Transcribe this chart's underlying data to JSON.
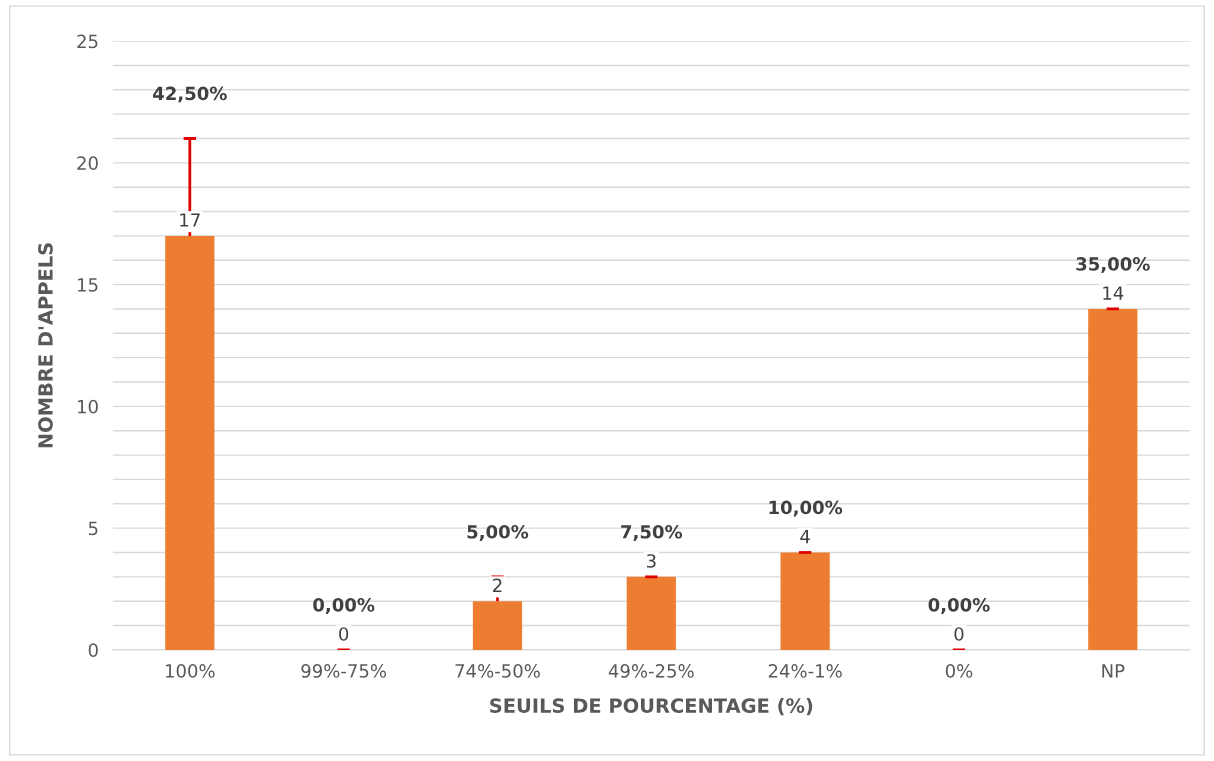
{
  "chart_data": {
    "type": "bar",
    "categories": [
      "100%",
      "99%-75%",
      "74%-50%",
      "49%-25%",
      "24%-1%",
      "0%",
      "NP"
    ],
    "values": [
      17,
      0,
      2,
      3,
      4,
      0,
      14
    ],
    "errors": [
      [
        17,
        21
      ],
      [
        0,
        0
      ],
      [
        2,
        3
      ],
      [
        3,
        3
      ],
      [
        4,
        4
      ],
      [
        0,
        0
      ],
      [
        14,
        14
      ]
    ],
    "color": "#ed7d31",
    "data_labels": true,
    "annotations": [
      "42,50%",
      "0,00%",
      "5,00%",
      "7,50%",
      "10,00%",
      "0,00%",
      "35,00%"
    ],
    "xlabel": "SEUILS DE POURCENTAGE (%)",
    "ylabel": "NOMBRE D'APPELS",
    "ylim": [
      0,
      25
    ],
    "yticks": [
      0,
      {
        "value": 1,
        "label": null
      },
      {
        "value": 2,
        "label": null
      },
      {
        "value": 3,
        "label": null
      },
      {
        "value": 4,
        "label": null
      },
      5,
      {
        "value": 6,
        "label": null
      },
      {
        "value": 7,
        "label": null
      },
      {
        "value": 8,
        "label": null
      },
      {
        "value": 9,
        "label": null
      },
      10,
      {
        "value": 11,
        "label": null
      },
      {
        "value": 12,
        "label": null
      },
      {
        "value": 13,
        "label": null
      },
      {
        "value": 14,
        "label": null
      },
      15,
      {
        "value": 16,
        "label": null
      },
      {
        "value": 17,
        "label": null
      },
      {
        "value": 18,
        "label": null
      },
      {
        "value": 19,
        "label": null
      },
      20,
      {
        "value": 21,
        "label": null
      },
      {
        "value": 22,
        "label": null
      },
      {
        "value": 23,
        "label": null
      },
      {
        "value": 24,
        "label": null
      },
      25
    ],
    "grid": "y",
    "legend": false
  }
}
